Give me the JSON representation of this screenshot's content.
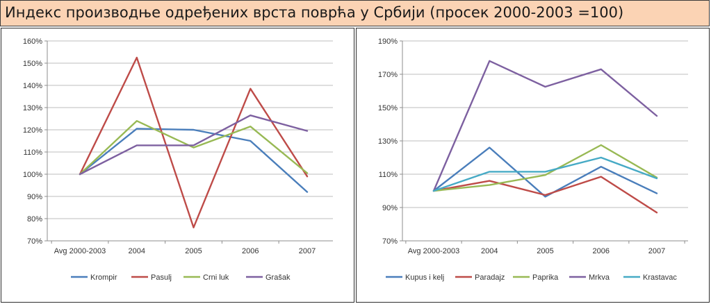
{
  "title": "Индекс производње одређених врста поврћа у Србији (просек 2000-2003 =100)",
  "chart_data": [
    {
      "type": "line",
      "categories": [
        "Avg 2000-2003",
        "2004",
        "2005",
        "2006",
        "2007"
      ],
      "ylim": [
        70,
        160
      ],
      "yticks": [
        70,
        80,
        90,
        100,
        110,
        120,
        130,
        140,
        150,
        160
      ],
      "ytick_labels": [
        "70%",
        "80%",
        "90%",
        "100%",
        "110%",
        "120%",
        "130%",
        "140%",
        "150%",
        "160%"
      ],
      "grid": true,
      "legend": "bottom",
      "series": [
        {
          "name": "Krompir",
          "color": "#4a7ebb",
          "values": [
            100,
            120.5,
            120,
            115,
            92
          ]
        },
        {
          "name": "Pasulj",
          "color": "#be4b48",
          "values": [
            100,
            152.5,
            76,
            138.5,
            99
          ]
        },
        {
          "name": "Crni luk",
          "color": "#98b954",
          "values": [
            100,
            124,
            112,
            121.5,
            100.5
          ]
        },
        {
          "name": "Grašak",
          "color": "#7d60a0",
          "values": [
            100,
            113,
            113,
            126.5,
            119.5
          ]
        }
      ]
    },
    {
      "type": "line",
      "categories": [
        "Avg 2000-2003",
        "2004",
        "2005",
        "2006",
        "2007"
      ],
      "ylim": [
        70,
        190
      ],
      "yticks": [
        70,
        90,
        110,
        130,
        150,
        170,
        190
      ],
      "ytick_labels": [
        "70%",
        "90%",
        "110%",
        "130%",
        "150%",
        "170%",
        "190%"
      ],
      "grid": true,
      "legend": "bottom",
      "series": [
        {
          "name": "Kupus i kelj",
          "color": "#4a7ebb",
          "values": [
            100,
            126,
            96.5,
            114.5,
            98.5
          ]
        },
        {
          "name": "Paradajz",
          "color": "#be4b48",
          "values": [
            100,
            106,
            97.5,
            108.5,
            87
          ]
        },
        {
          "name": "Paprika",
          "color": "#98b954",
          "values": [
            100,
            103.5,
            109.5,
            127.5,
            108
          ]
        },
        {
          "name": "Mrkva",
          "color": "#7d60a0",
          "values": [
            100,
            178,
            162.5,
            173,
            145
          ]
        },
        {
          "name": "Krastavac",
          "color": "#46aac5",
          "values": [
            100,
            111.5,
            111.5,
            120,
            107.5
          ]
        }
      ]
    }
  ]
}
